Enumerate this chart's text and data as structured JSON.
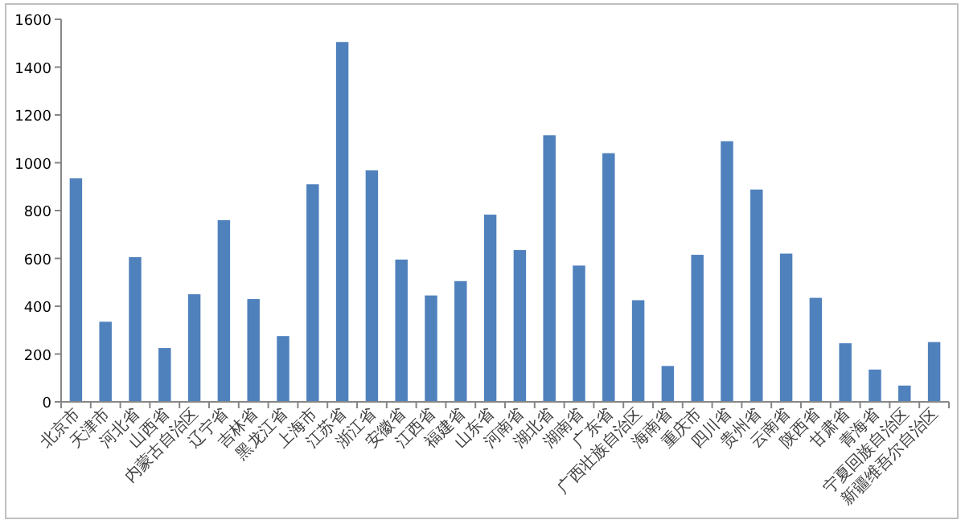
{
  "chart_data": {
    "type": "bar",
    "categories": [
      "北京市",
      "天津市",
      "河北省",
      "山西省",
      "内蒙古自治区",
      "辽宁省",
      "吉林省",
      "黑龙江省",
      "上海市",
      "江苏省",
      "浙江省",
      "安徽省",
      "江西省",
      "福建省",
      "山东省",
      "河南省",
      "湖北省",
      "湖南省",
      "广东省",
      "广西壮族自治区",
      "海南省",
      "重庆市",
      "四川省",
      "贵州省",
      "云南省",
      "陕西省",
      "甘肃省",
      "青海省",
      "宁夏回族自治区",
      "新疆维吾尔自治区"
    ],
    "values": [
      935,
      335,
      605,
      225,
      450,
      760,
      430,
      275,
      910,
      1505,
      968,
      595,
      445,
      505,
      783,
      635,
      1115,
      570,
      1040,
      425,
      150,
      615,
      1090,
      888,
      620,
      435,
      245,
      135,
      68,
      250
    ],
    "color": "#4f81bd",
    "ylim": [
      0,
      1600
    ],
    "yticks": [
      0,
      200,
      400,
      600,
      800,
      1000,
      1200,
      1400,
      1600
    ],
    "grid": false
  }
}
